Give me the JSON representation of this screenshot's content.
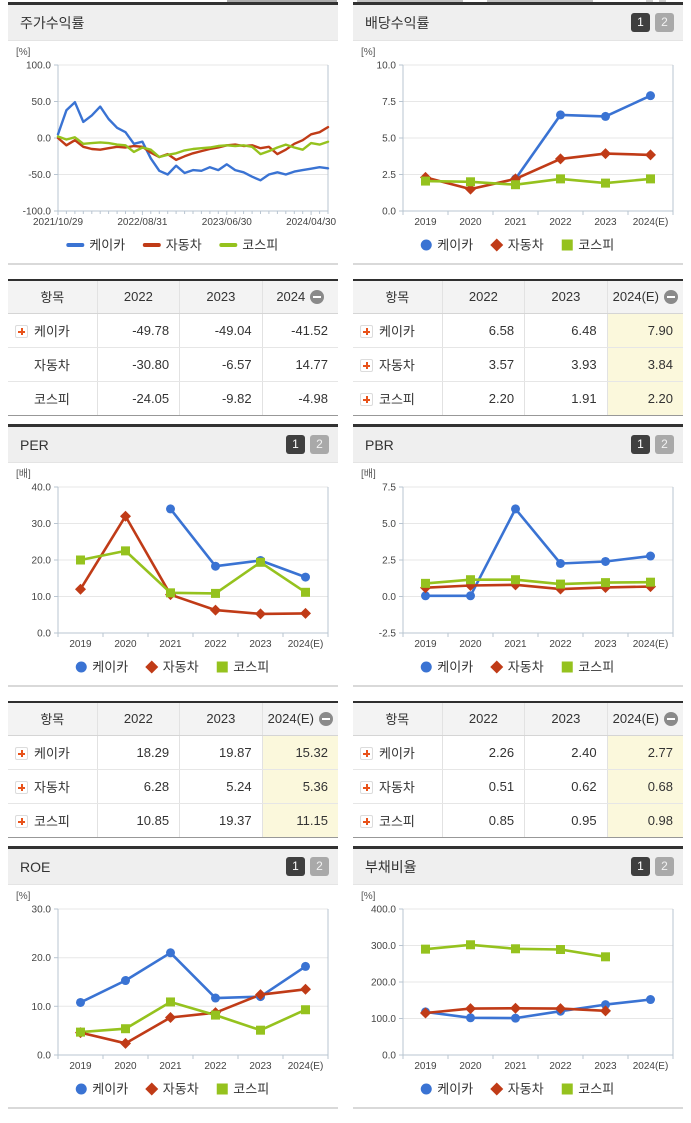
{
  "pager": {
    "page1": "1",
    "page2": "2"
  },
  "legend": [
    "케이카",
    "자동차",
    "코스피"
  ],
  "colors": {
    "keicar": "#3a73d3",
    "auto": "#c03b17",
    "kospi": "#95c21e"
  },
  "chart_data": [
    {
      "type": "line",
      "title": "주가수익률",
      "unit": "[%]",
      "has_pager": false,
      "grid": true,
      "legend_position": "bottom",
      "ylim": [
        -100,
        100
      ],
      "yticks": [
        100,
        50,
        0,
        -50,
        -100
      ],
      "ytick_labels": [
        "100.0",
        "50.0",
        "0.0",
        "-50.0",
        "-100.0"
      ],
      "x_tick_indices": [
        0,
        10,
        20,
        30
      ],
      "x_tick_labels": [
        "2021/10/29",
        "2022/08/31",
        "2023/06/30",
        "2024/04/30"
      ],
      "series": [
        {
          "name": "케이카",
          "color": "#3a73d3",
          "marker": "none",
          "values": [
            5,
            38,
            49,
            22,
            31,
            43,
            26,
            14,
            8,
            -8,
            -5,
            -28,
            -45,
            -50,
            -38,
            -48,
            -44,
            -45,
            -40,
            -44,
            -36,
            -44,
            -47,
            -53,
            -58,
            -50,
            -47,
            -50,
            -46,
            -44,
            -42,
            -40,
            -41.5
          ]
        },
        {
          "name": "자동차",
          "color": "#c03b17",
          "marker": "none",
          "values": [
            0,
            -10,
            -3,
            -12,
            -15,
            -16,
            -14,
            -12,
            -13,
            -11,
            -12,
            -20,
            -26,
            -22,
            -30,
            -25,
            -21,
            -18,
            -15,
            -13,
            -10,
            -9,
            -11,
            -10,
            -14,
            -12,
            -22,
            -16,
            -8,
            -3,
            5,
            8,
            15
          ]
        },
        {
          "name": "코스피",
          "color": "#95c21e",
          "marker": "none",
          "values": [
            2,
            -2,
            1,
            -8,
            -7,
            -6,
            -7,
            -9,
            -10,
            -19,
            -13,
            -16,
            -26,
            -23,
            -21,
            -17,
            -15,
            -14,
            -13,
            -11,
            -10,
            -11,
            -10,
            -12,
            -22,
            -18,
            -13,
            -9,
            -13,
            -16,
            -7,
            -9,
            -5
          ]
        }
      ]
    },
    {
      "type": "line",
      "title": "배당수익률",
      "unit": "[%]",
      "has_pager": true,
      "grid": true,
      "legend_position": "bottom",
      "ylim": [
        0,
        10
      ],
      "yticks": [
        10,
        7.5,
        5,
        2.5,
        0
      ],
      "ytick_labels": [
        "10.0",
        "7.5",
        "5.0",
        "2.5",
        "0.0"
      ],
      "categories": [
        "2019",
        "2020",
        "2021",
        "2022",
        "2023",
        "2024(E)"
      ],
      "series": [
        {
          "name": "케이카",
          "color": "#3a73d3",
          "marker": "circle",
          "values": [
            null,
            null,
            2.2,
            6.58,
            6.48,
            7.9
          ]
        },
        {
          "name": "자동차",
          "color": "#c03b17",
          "marker": "diamond",
          "values": [
            2.3,
            1.5,
            2.2,
            3.57,
            3.93,
            3.84
          ]
        },
        {
          "name": "코스피",
          "color": "#95c21e",
          "marker": "square",
          "values": [
            2.05,
            2.0,
            1.8,
            2.2,
            1.91,
            2.2
          ]
        }
      ]
    },
    {
      "type": "line",
      "title": "PER",
      "unit": "[배]",
      "has_pager": true,
      "grid": true,
      "legend_position": "bottom",
      "ylim": [
        0,
        40
      ],
      "yticks": [
        40,
        30,
        20,
        10,
        0
      ],
      "ytick_labels": [
        "40.0",
        "30.0",
        "20.0",
        "10.0",
        "0.0"
      ],
      "categories": [
        "2019",
        "2020",
        "2021",
        "2022",
        "2023",
        "2024(E)"
      ],
      "series": [
        {
          "name": "케이카",
          "color": "#3a73d3",
          "marker": "circle",
          "values": [
            null,
            null,
            34.0,
            18.29,
            19.87,
            15.32
          ]
        },
        {
          "name": "자동차",
          "color": "#c03b17",
          "marker": "diamond",
          "values": [
            12.0,
            32.0,
            10.5,
            6.28,
            5.24,
            5.36
          ]
        },
        {
          "name": "코스피",
          "color": "#95c21e",
          "marker": "square",
          "values": [
            20.0,
            22.5,
            11.0,
            10.85,
            19.37,
            11.15
          ]
        }
      ]
    },
    {
      "type": "line",
      "title": "PBR",
      "unit": "[배]",
      "has_pager": true,
      "grid": true,
      "legend_position": "bottom",
      "ylim": [
        -2.5,
        7.5
      ],
      "yticks": [
        7.5,
        5,
        2.5,
        0,
        -2.5
      ],
      "ytick_labels": [
        "7.5",
        "5.0",
        "2.5",
        "0.0",
        "-2.5"
      ],
      "categories": [
        "2019",
        "2020",
        "2021",
        "2022",
        "2023",
        "2024(E)"
      ],
      "series": [
        {
          "name": "케이카",
          "color": "#3a73d3",
          "marker": "circle",
          "values": [
            0.05,
            0.05,
            6.0,
            2.26,
            2.4,
            2.77
          ]
        },
        {
          "name": "자동차",
          "color": "#c03b17",
          "marker": "diamond",
          "values": [
            0.6,
            0.75,
            0.8,
            0.51,
            0.62,
            0.68
          ]
        },
        {
          "name": "코스피",
          "color": "#95c21e",
          "marker": "square",
          "values": [
            0.9,
            1.15,
            1.15,
            0.85,
            0.95,
            0.98
          ]
        }
      ]
    },
    {
      "type": "line",
      "title": "ROE",
      "unit": "[%]",
      "has_pager": true,
      "grid": true,
      "legend_position": "bottom",
      "ylim": [
        0,
        30
      ],
      "yticks": [
        30,
        20,
        10,
        0
      ],
      "ytick_labels": [
        "30.0",
        "20.0",
        "10.0",
        "0.0"
      ],
      "categories": [
        "2019",
        "2020",
        "2021",
        "2022",
        "2023",
        "2024(E)"
      ],
      "series": [
        {
          "name": "케이카",
          "color": "#3a73d3",
          "marker": "circle",
          "values": [
            10.8,
            15.3,
            21.0,
            11.7,
            12.0,
            18.2
          ]
        },
        {
          "name": "자동차",
          "color": "#c03b17",
          "marker": "diamond",
          "values": [
            4.6,
            2.4,
            7.7,
            8.7,
            12.4,
            13.5
          ]
        },
        {
          "name": "코스피",
          "color": "#95c21e",
          "marker": "square",
          "values": [
            4.7,
            5.4,
            10.9,
            8.2,
            5.1,
            9.3
          ]
        }
      ]
    },
    {
      "type": "line",
      "title": "부채비율",
      "unit": "[%]",
      "has_pager": true,
      "grid": true,
      "legend_position": "bottom",
      "ylim": [
        0,
        400
      ],
      "yticks": [
        400,
        300,
        200,
        100,
        0
      ],
      "ytick_labels": [
        "400.0",
        "300.0",
        "200.0",
        "100.0",
        "0.0"
      ],
      "categories": [
        "2019",
        "2020",
        "2021",
        "2022",
        "2023",
        "2024(E)"
      ],
      "series": [
        {
          "name": "케이카",
          "color": "#3a73d3",
          "marker": "circle",
          "values": [
            118,
            102,
            101,
            120,
            138,
            152
          ]
        },
        {
          "name": "자동차",
          "color": "#c03b17",
          "marker": "diamond",
          "values": [
            115,
            127,
            128,
            127,
            121,
            null
          ]
        },
        {
          "name": "코스피",
          "color": "#95c21e",
          "marker": "square",
          "values": [
            290,
            302,
            291,
            289,
            269,
            null
          ]
        }
      ]
    }
  ],
  "tables": [
    {
      "columns": [
        "항목",
        "2022",
        "2023",
        "2024"
      ],
      "minus_on_last": true,
      "est_highlight": false,
      "rows": [
        {
          "label": "케이카",
          "plus": true,
          "values": [
            "-49.78",
            "-49.04",
            "-41.52"
          ]
        },
        {
          "label": "자동차",
          "plus": false,
          "values": [
            "-30.80",
            "-6.57",
            "14.77"
          ]
        },
        {
          "label": "코스피",
          "plus": false,
          "values": [
            "-24.05",
            "-9.82",
            "-4.98"
          ]
        }
      ]
    },
    {
      "columns": [
        "항목",
        "2022",
        "2023",
        "2024(E)"
      ],
      "minus_on_last": true,
      "est_highlight": true,
      "rows": [
        {
          "label": "케이카",
          "plus": true,
          "values": [
            "6.58",
            "6.48",
            "7.90"
          ]
        },
        {
          "label": "자동차",
          "plus": true,
          "values": [
            "3.57",
            "3.93",
            "3.84"
          ]
        },
        {
          "label": "코스피",
          "plus": true,
          "values": [
            "2.20",
            "1.91",
            "2.20"
          ]
        }
      ]
    },
    {
      "columns": [
        "항목",
        "2022",
        "2023",
        "2024(E)"
      ],
      "minus_on_last": true,
      "est_highlight": true,
      "rows": [
        {
          "label": "케이카",
          "plus": true,
          "values": [
            "18.29",
            "19.87",
            "15.32"
          ]
        },
        {
          "label": "자동차",
          "plus": true,
          "values": [
            "6.28",
            "5.24",
            "5.36"
          ]
        },
        {
          "label": "코스피",
          "plus": true,
          "values": [
            "10.85",
            "19.37",
            "11.15"
          ]
        }
      ]
    },
    {
      "columns": [
        "항목",
        "2022",
        "2023",
        "2024(E)"
      ],
      "minus_on_last": true,
      "est_highlight": true,
      "rows": [
        {
          "label": "케이카",
          "plus": true,
          "values": [
            "2.26",
            "2.40",
            "2.77"
          ]
        },
        {
          "label": "자동차",
          "plus": true,
          "values": [
            "0.51",
            "0.62",
            "0.68"
          ]
        },
        {
          "label": "코스피",
          "plus": true,
          "values": [
            "0.85",
            "0.95",
            "0.98"
          ]
        }
      ]
    }
  ]
}
